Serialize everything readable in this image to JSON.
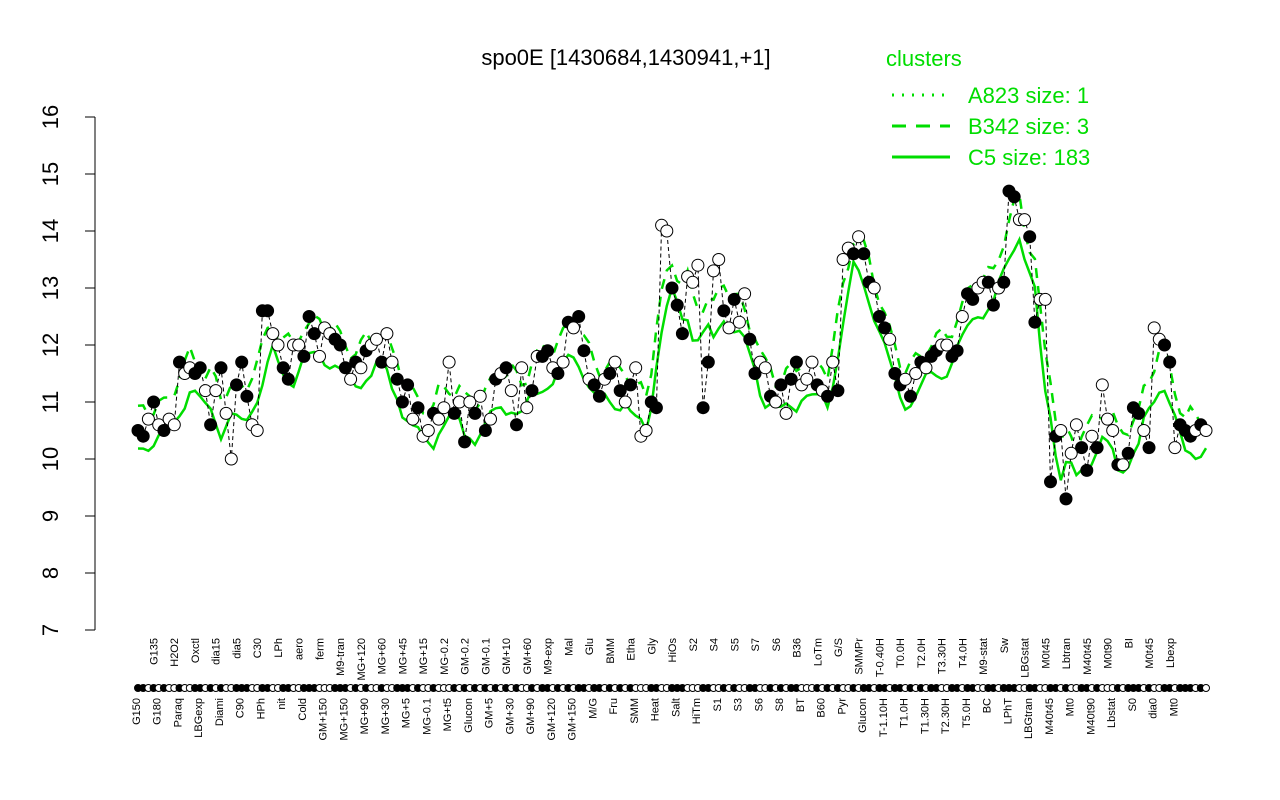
{
  "chart_data": {
    "type": "line",
    "title": "spo0E [1430684,1430941,+1]",
    "xlabel": "",
    "ylabel": "",
    "ylim": [
      7,
      16
    ],
    "yticks": [
      7,
      8,
      9,
      10,
      11,
      12,
      13,
      14,
      15,
      16
    ],
    "grid": false,
    "legend": {
      "title": "clusters",
      "position": "top-right",
      "entries": [
        {
          "label": "A823 size: 1",
          "style": "dotted"
        },
        {
          "label": "B342 size: 3",
          "style": "dashed"
        },
        {
          "label": "C5 size: 183",
          "style": "solid"
        }
      ]
    },
    "colors": {
      "line": "#00dd00",
      "point_stroke": "#000000",
      "axis": "#000000"
    },
    "x_tick_labels_upper": [
      "G135",
      "H2O2",
      "Oxctl",
      "dia15",
      "dia5",
      "C30",
      "LPh",
      "aero",
      "ferm",
      "M9-tran",
      "MG+120",
      "MG+60",
      "MG+45",
      "MG+15",
      "MG-0.2",
      "GM-0.2",
      "GM-0.1",
      "GM+10",
      "GM+60",
      "M9-exp",
      "Mal",
      "Glu",
      "BMM",
      "Etha",
      "Gly",
      "HiOs",
      "S2",
      "S4",
      "S5",
      "S7",
      "S6",
      "B36",
      "LoTm",
      "G/S",
      "SMMPr",
      "T-0.40H",
      "T0.0H",
      "T2.0H",
      "T3.30H",
      "T4.0H",
      "M9-stat",
      "Sw",
      "LBGstat",
      "M0t45",
      "Lbtran",
      "M40t45",
      "M0t90",
      "BI",
      "M0t45",
      "Lbexp"
    ],
    "x_tick_labels_lower": [
      "G150",
      "G180",
      "Paraq",
      "LBGexp",
      "Diami",
      "C90",
      "HPh",
      "nit",
      "Cold",
      "GM+150",
      "MG+150",
      "MG+90",
      "MG+30",
      "MG+5",
      "MG-0.1",
      "MG+t5",
      "Glucon",
      "GM+5",
      "GM+30",
      "GM+90",
      "GM+120",
      "GM+150",
      "M/G",
      "Fru",
      "SMM",
      "Heat",
      "Salt",
      "HiTm",
      "S1",
      "S3",
      "S6",
      "S8",
      "BT",
      "B60",
      "Pyr",
      "Glucon",
      "T-1.10H",
      "T1.0H",
      "T1.30H",
      "T2.30H",
      "T5.0H",
      "BC",
      "LPhT",
      "LBGtran",
      "M40t45",
      "Mt0",
      "M40t90",
      "Lbstat",
      "S0",
      "dia0",
      "Mt0"
    ],
    "series": [
      {
        "values": [
          10.5,
          10.4,
          10.7,
          11.0,
          10.6,
          10.5,
          10.7,
          10.6,
          11.7,
          11.5,
          11.6,
          11.5,
          11.6,
          11.2,
          10.6,
          11.2,
          11.6,
          10.8,
          10.0,
          11.3,
          11.7,
          11.1,
          10.6,
          10.5,
          12.6,
          12.6,
          12.2,
          12.0,
          11.6,
          11.4,
          12.0,
          12.0,
          11.8,
          12.5,
          12.2,
          11.8,
          12.3,
          12.2,
          12.1,
          12.0,
          11.6,
          11.4,
          11.7,
          11.6,
          11.9,
          12.0,
          12.1,
          11.7,
          12.2,
          11.7,
          11.4,
          11.0,
          11.3,
          10.7,
          10.9,
          10.4,
          10.5,
          10.8,
          10.7,
          10.9,
          11.7,
          10.8,
          11.0,
          10.3,
          11.0,
          10.8,
          11.1,
          10.5,
          10.7,
          11.4,
          11.5,
          11.6,
          11.2,
          10.6,
          11.6,
          10.9,
          11.2,
          11.8,
          11.8,
          11.9,
          11.6,
          11.5,
          11.7,
          12.4,
          12.3,
          12.5,
          11.9,
          11.4,
          11.3,
          11.1,
          11.4,
          11.5,
          11.7,
          11.2,
          11.0,
          11.3,
          11.6,
          10.4,
          10.5,
          11.0,
          10.9,
          14.1,
          14.0,
          13.0,
          12.7,
          12.2,
          13.2,
          13.1,
          13.4,
          10.9,
          11.7,
          13.3,
          13.5,
          12.6,
          12.3,
          12.8,
          12.4,
          12.9,
          12.1,
          11.5,
          11.7,
          11.6,
          11.1,
          11.0,
          11.3,
          10.8,
          11.4,
          11.7,
          11.3,
          11.4,
          11.7,
          11.3,
          11.2,
          11.1,
          11.7,
          11.2,
          13.5,
          13.7,
          13.6,
          13.9,
          13.6,
          13.1,
          13.0,
          12.5,
          12.3,
          12.1,
          11.5,
          11.3,
          11.4,
          11.1,
          11.5,
          11.7,
          11.6,
          11.8,
          11.9,
          12.0,
          12.0,
          11.8,
          11.9,
          12.5,
          12.9,
          12.8,
          13.0,
          13.1,
          13.1,
          12.7,
          13.0,
          13.1,
          14.7,
          14.6,
          14.2,
          14.2,
          13.9,
          12.4,
          12.8,
          12.8,
          9.6,
          10.4,
          10.5,
          9.3,
          10.1,
          10.6,
          10.2,
          9.8,
          10.4,
          10.2,
          11.3,
          10.7,
          10.5,
          9.9,
          9.9,
          10.1,
          10.9,
          10.8,
          10.5,
          10.2,
          12.3,
          12.1,
          12.0,
          11.7,
          10.2,
          10.6,
          10.5,
          10.4,
          10.5,
          10.6,
          10.5
        ],
        "filled": [
          true,
          true,
          false,
          true,
          false,
          true,
          false,
          false,
          true,
          false,
          false,
          true,
          true,
          false,
          true,
          false,
          true,
          false,
          false,
          true,
          true,
          true,
          false,
          false,
          true,
          true,
          false,
          false,
          true,
          true,
          false,
          false,
          true,
          true,
          true,
          false,
          false,
          false,
          true,
          true,
          true,
          false,
          true,
          false,
          true,
          false,
          false,
          true,
          false,
          false,
          true,
          true,
          true,
          false,
          true,
          false,
          false,
          true,
          false,
          false,
          false,
          true,
          false,
          true,
          false,
          true,
          false,
          true,
          false,
          true,
          false,
          true,
          false,
          true,
          false,
          false,
          true,
          false,
          true,
          true,
          false,
          true,
          false,
          true,
          false,
          true,
          true,
          false,
          true,
          true,
          false,
          true,
          false,
          true,
          false,
          true,
          false,
          false,
          false,
          true,
          true,
          false,
          false,
          true,
          true,
          true,
          false,
          false,
          false,
          true,
          true,
          false,
          false,
          true,
          false,
          true,
          false,
          false,
          true,
          true,
          false,
          false,
          true,
          false,
          true,
          false,
          true,
          true,
          false,
          false,
          false,
          true,
          false,
          true,
          false,
          true,
          false,
          false,
          true,
          false,
          true,
          true,
          false,
          true,
          true,
          false,
          true,
          true,
          false,
          true,
          false,
          true,
          false,
          true,
          true,
          false,
          false,
          true,
          true,
          false,
          true,
          true,
          false,
          false,
          true,
          true,
          false,
          true,
          true,
          true,
          false,
          false,
          true,
          true,
          false,
          false,
          true,
          true,
          false,
          true,
          false,
          false,
          true,
          true,
          false,
          true,
          false,
          false,
          false,
          true,
          false,
          true,
          true,
          true,
          false,
          true,
          false,
          false,
          true,
          true,
          false,
          true,
          true,
          true,
          false,
          true,
          false,
          false,
          true
        ]
      }
    ]
  }
}
